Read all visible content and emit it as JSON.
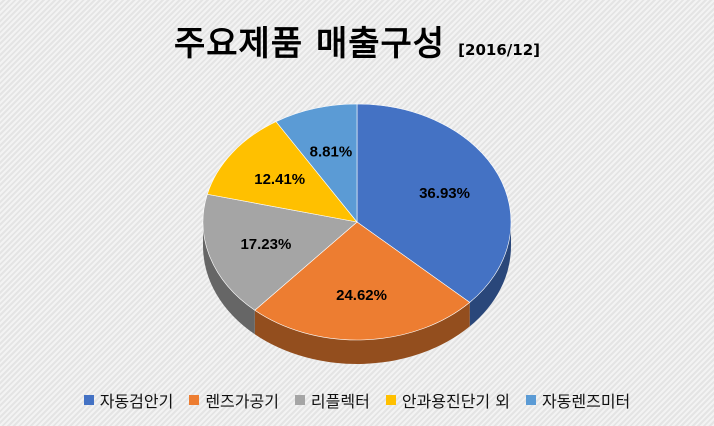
{
  "chart_data": {
    "type": "pie",
    "title": "주요제품 매출구성",
    "subtitle": "[2016/12]",
    "slices": [
      {
        "name": "자동검안기",
        "value": 36.93,
        "label": "36.93%",
        "color": "#4472C4"
      },
      {
        "name": "렌즈가공기",
        "value": 24.62,
        "label": "24.62%",
        "color": "#ED7D31"
      },
      {
        "name": "리플렉터",
        "value": 17.23,
        "label": "17.23%",
        "color": "#A5A5A5"
      },
      {
        "name": "안과용진단기 외",
        "value": 12.41,
        "label": "12.41%",
        "color": "#FFC000"
      },
      {
        "name": "자동렌즈미터",
        "value": 8.81,
        "label": "8.81%",
        "color": "#5B9BD5"
      }
    ],
    "legend_position": "bottom"
  }
}
